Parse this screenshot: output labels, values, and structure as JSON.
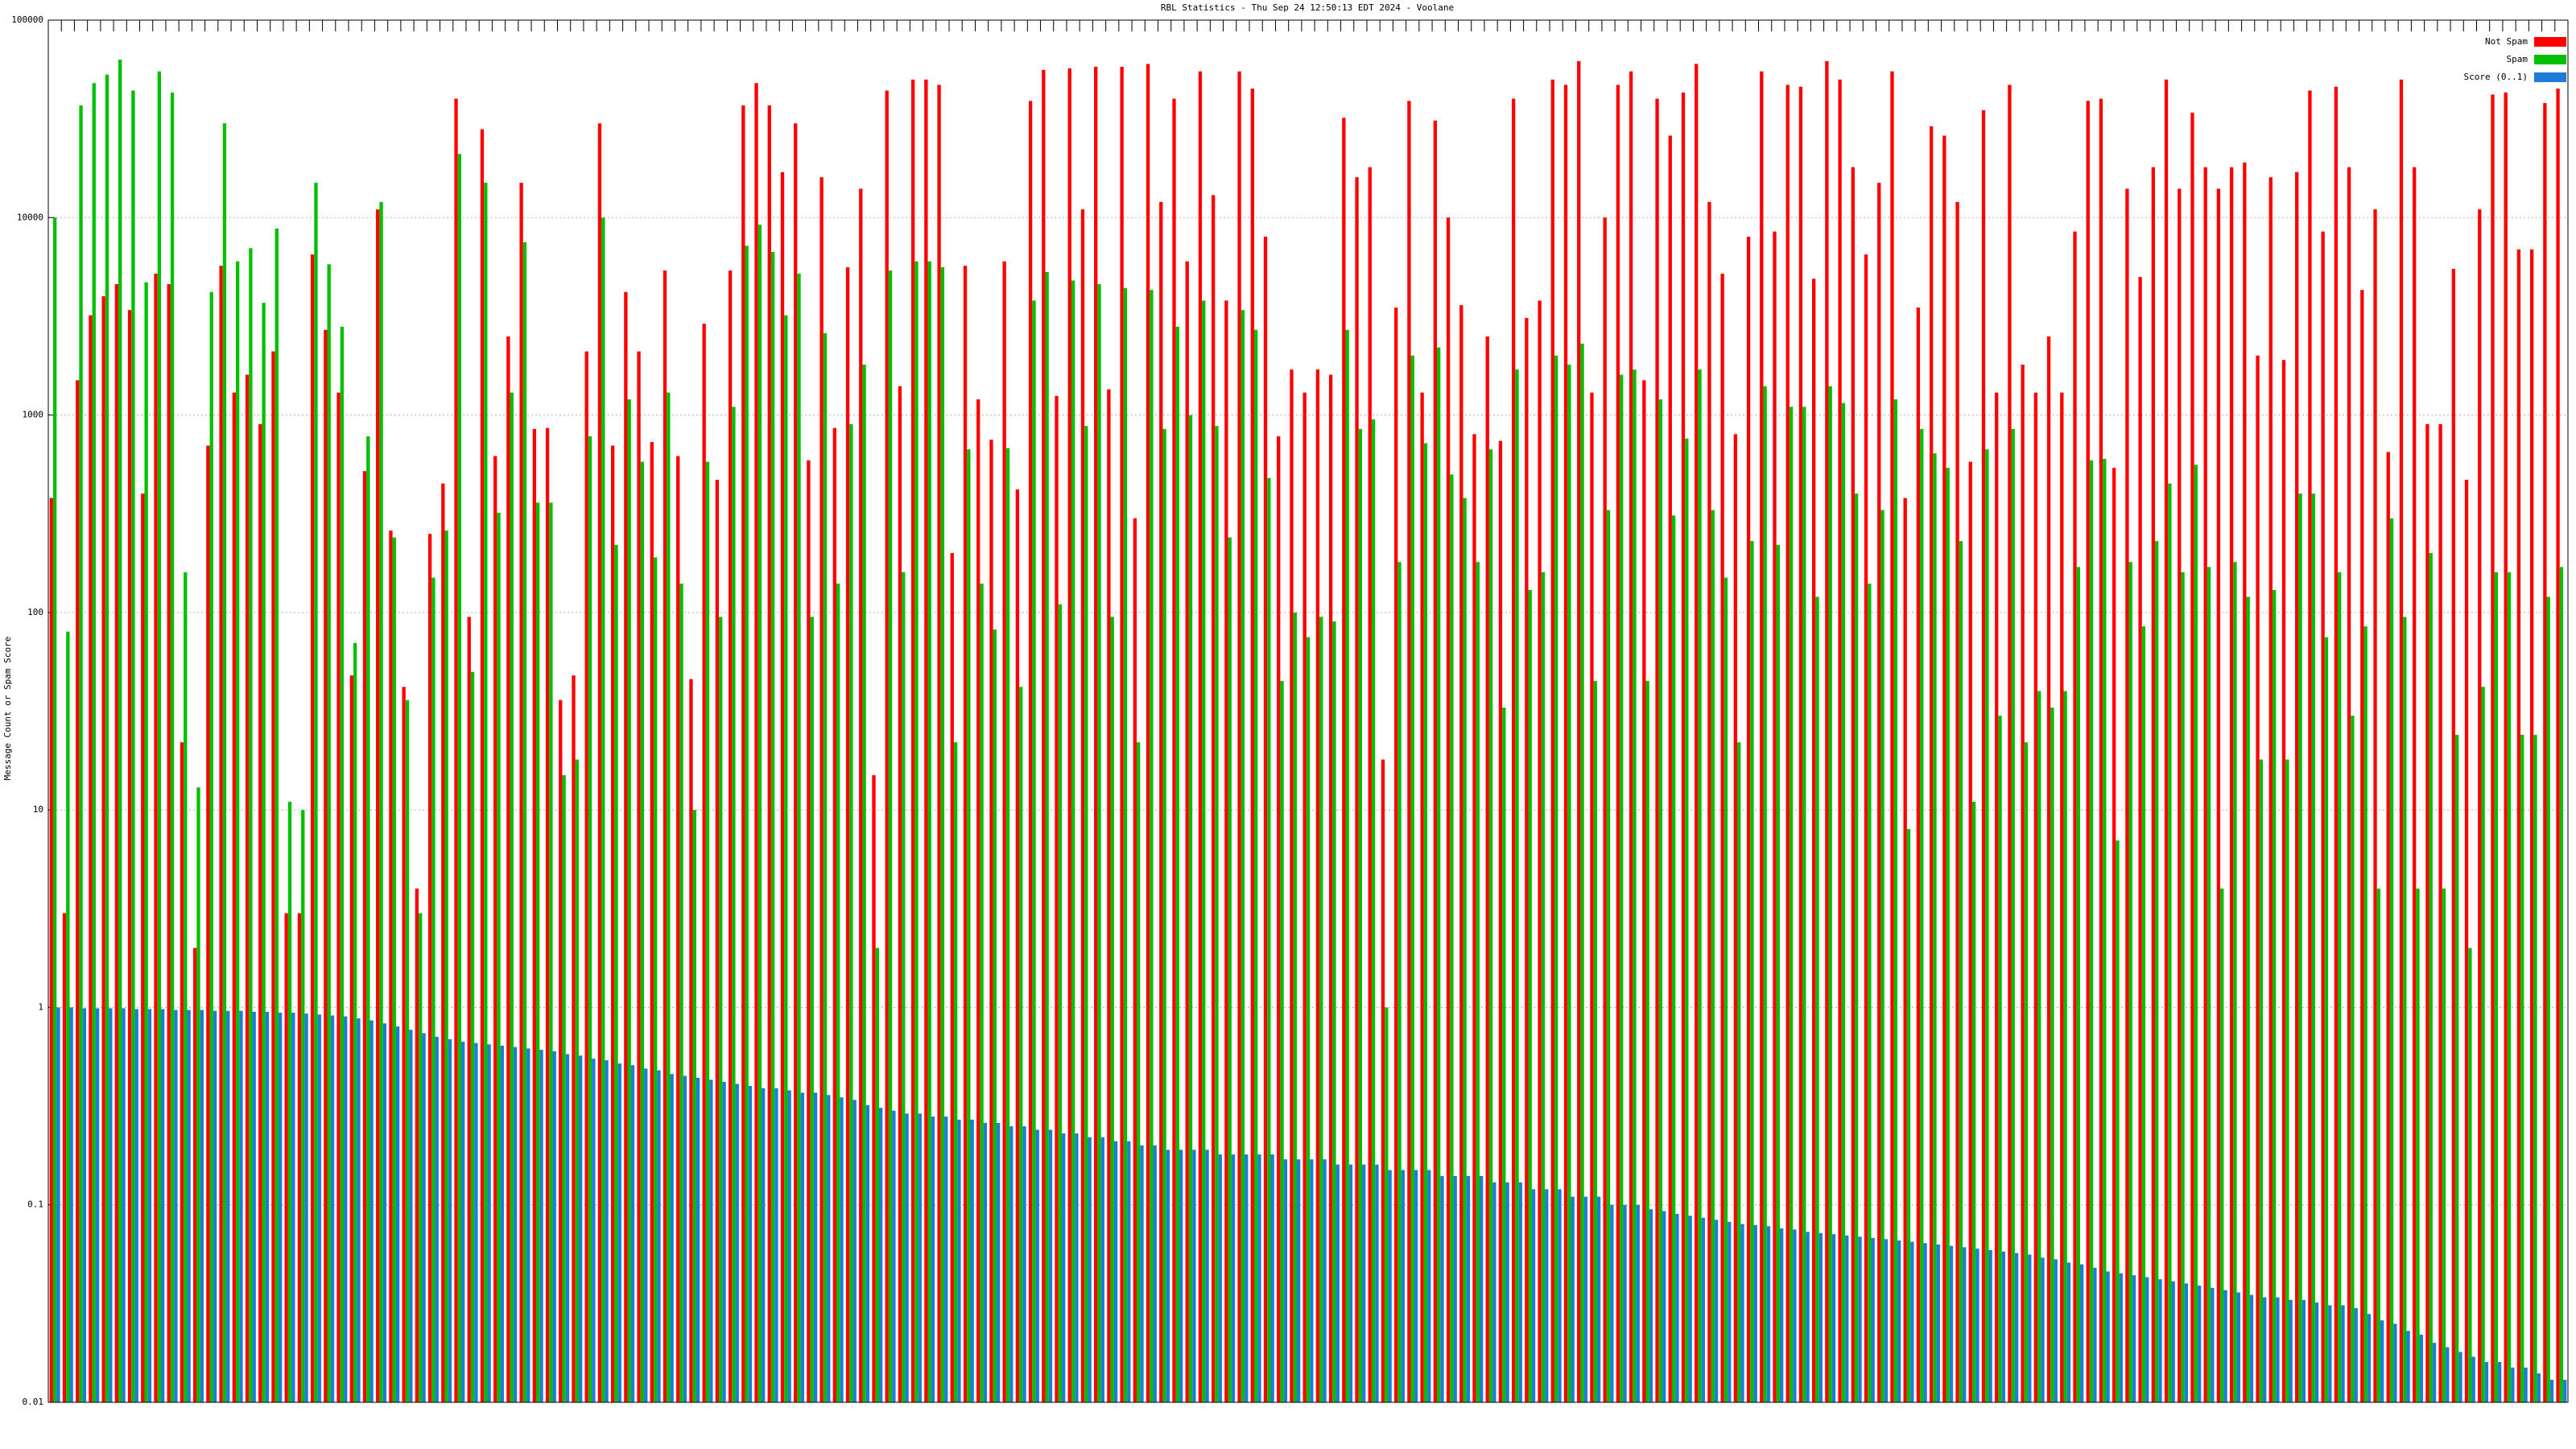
{
  "chart_data": {
    "type": "bar",
    "title": "RBL Statistics - Thu Sep 24 12:50:13 EDT 2024 - Voolane",
    "y_label": "Message Count or Spam Score",
    "log_scale": true,
    "grid": true,
    "legend": "top-right",
    "ylim": [
      0.01,
      100000
    ],
    "yticks": [
      0.01,
      0.1,
      1,
      10,
      100,
      1000,
      10000,
      100000
    ],
    "series": [
      {
        "name": "Not Spam",
        "color": "#ff0000",
        "values": [
          380,
          3,
          1500,
          3200,
          4000,
          4600,
          3400,
          400,
          5200,
          4600,
          22,
          2,
          700,
          5700,
          1300,
          1600,
          900,
          2100,
          3,
          3,
          6500,
          2700,
          1300,
          48,
          520,
          11000,
          260,
          42,
          4,
          250,
          450,
          40000,
          95,
          28000,
          620,
          2500,
          15000,
          850,
          860,
          36,
          48,
          2100,
          30000,
          700,
          4200,
          2100,
          730,
          5400,
          620,
          46,
          2900,
          470,
          5400,
          37000,
          48000,
          37000,
          17000,
          30000,
          590,
          16000,
          860,
          5600,
          14000,
          15,
          44000,
          1400,
          50000,
          50000,
          47000,
          200,
          5700,
          1200,
          750,
          6000,
          420,
          39000,
          56000,
          1250,
          57000,
          11000,
          58000,
          1350,
          58000,
          300,
          60000,
          12000,
          40000,
          6000,
          55000,
          13000,
          3800,
          55000,
          45000,
          8000,
          780,
          1700,
          1300,
          1700,
          1600,
          32000,
          16000,
          18000,
          18,
          3500,
          39000,
          1300,
          31000,
          10000,
          3600,
          800,
          2500,
          740,
          40000,
          3100,
          3800,
          50000,
          47000,
          62000,
          1300,
          10000,
          47000,
          55000,
          1500,
          40000,
          26000,
          43000,
          60000,
          12000,
          5200,
          800,
          8000,
          55000,
          8500,
          47000,
          46000,
          4900,
          62000,
          50000,
          18000,
          6500,
          15000,
          55000,
          380,
          3500,
          29000,
          26000,
          12000,
          580,
          35000,
          1300,
          47000,
          1800,
          1300,
          2500,
          1300,
          8500,
          39000,
          40000,
          540,
          14000,
          5000,
          18000,
          50000,
          14000,
          34000,
          18000,
          14000,
          18000,
          19000,
          2000,
          16000,
          1900,
          17000,
          44000,
          8500,
          46000,
          18000,
          4300,
          11000,
          650,
          50000,
          18000,
          900,
          900,
          5500,
          470,
          11000,
          42000,
          43000,
          6900,
          6900,
          38000,
          45000
        ]
      },
      {
        "name": "Spam",
        "color": "#00c000",
        "values": [
          10000,
          80,
          37000,
          48000,
          53000,
          63000,
          44000,
          4700,
          55000,
          43000,
          160,
          13,
          4200,
          30000,
          6000,
          7000,
          3700,
          8800,
          11,
          10,
          15000,
          5800,
          2800,
          70,
          780,
          12000,
          240,
          36,
          3,
          150,
          260,
          21000,
          50,
          15000,
          320,
          1300,
          7500,
          360,
          360,
          15,
          18,
          780,
          10000,
          220,
          1200,
          580,
          190,
          1300,
          140,
          10,
          580,
          95,
          1100,
          7200,
          9200,
          6700,
          3200,
          5200,
          95,
          2600,
          140,
          900,
          1800,
          2,
          5400,
          160,
          6000,
          6000,
          5600,
          22,
          670,
          140,
          82,
          680,
          42,
          3800,
          5300,
          110,
          4800,
          880,
          4600,
          95,
          4400,
          22,
          4300,
          850,
          2800,
          1000,
          3800,
          880,
          240,
          3400,
          2700,
          480,
          45,
          100,
          75,
          95,
          90,
          2700,
          850,
          950,
          1,
          180,
          2000,
          720,
          2200,
          500,
          380,
          180,
          670,
          33,
          1700,
          130,
          160,
          2000,
          1800,
          2300,
          45,
          330,
          1600,
          1700,
          45,
          1200,
          310,
          760,
          1700,
          330,
          150,
          22,
          230,
          1400,
          220,
          1100,
          1100,
          120,
          1400,
          1150,
          400,
          140,
          330,
          1200,
          8,
          850,
          640,
          540,
          230,
          11,
          670,
          30,
          850,
          22,
          40,
          33,
          40,
          170,
          590,
          600,
          7,
          180,
          85,
          230,
          450,
          160,
          560,
          170,
          4,
          180,
          120,
          18,
          130,
          18,
          400,
          400,
          75,
          160,
          30,
          85,
          4,
          300,
          95,
          4,
          200,
          4,
          24,
          2,
          42,
          160,
          160,
          24,
          24,
          120,
          170
        ]
      },
      {
        "name": "Score (0..1)",
        "color": "#1f7ad8",
        "values": [
          1,
          1,
          0.99,
          0.99,
          0.99,
          0.99,
          0.98,
          0.98,
          0.98,
          0.97,
          0.97,
          0.97,
          0.96,
          0.96,
          0.96,
          0.95,
          0.95,
          0.94,
          0.94,
          0.93,
          0.92,
          0.91,
          0.9,
          0.88,
          0.86,
          0.83,
          0.8,
          0.77,
          0.74,
          0.71,
          0.69,
          0.67,
          0.66,
          0.65,
          0.64,
          0.63,
          0.62,
          0.61,
          0.6,
          0.58,
          0.57,
          0.55,
          0.54,
          0.52,
          0.51,
          0.49,
          0.48,
          0.46,
          0.45,
          0.44,
          0.43,
          0.42,
          0.41,
          0.4,
          0.39,
          0.39,
          0.38,
          0.37,
          0.37,
          0.36,
          0.35,
          0.34,
          0.32,
          0.31,
          0.3,
          0.29,
          0.29,
          0.28,
          0.28,
          0.27,
          0.27,
          0.26,
          0.26,
          0.25,
          0.25,
          0.24,
          0.24,
          0.23,
          0.23,
          0.22,
          0.22,
          0.21,
          0.21,
          0.2,
          0.2,
          0.19,
          0.19,
          0.19,
          0.19,
          0.18,
          0.18,
          0.18,
          0.18,
          0.18,
          0.17,
          0.17,
          0.17,
          0.17,
          0.16,
          0.16,
          0.16,
          0.16,
          0.15,
          0.15,
          0.15,
          0.15,
          0.14,
          0.14,
          0.14,
          0.14,
          0.13,
          0.13,
          0.13,
          0.12,
          0.12,
          0.12,
          0.11,
          0.11,
          0.11,
          0.1,
          0.1,
          0.1,
          0.095,
          0.093,
          0.09,
          0.088,
          0.086,
          0.084,
          0.082,
          0.08,
          0.079,
          0.078,
          0.076,
          0.075,
          0.073,
          0.072,
          0.071,
          0.07,
          0.069,
          0.068,
          0.067,
          0.066,
          0.065,
          0.064,
          0.063,
          0.062,
          0.061,
          0.06,
          0.059,
          0.058,
          0.057,
          0.056,
          0.054,
          0.053,
          0.051,
          0.05,
          0.048,
          0.046,
          0.045,
          0.044,
          0.043,
          0.042,
          0.041,
          0.04,
          0.039,
          0.038,
          0.037,
          0.036,
          0.035,
          0.034,
          0.034,
          0.033,
          0.033,
          0.032,
          0.031,
          0.031,
          0.03,
          0.028,
          0.026,
          0.025,
          0.023,
          0.022,
          0.02,
          0.019,
          0.018,
          0.017,
          0.016,
          0.016,
          0.015,
          0.015,
          0.014,
          0.013,
          0.013
        ]
      }
    ]
  }
}
